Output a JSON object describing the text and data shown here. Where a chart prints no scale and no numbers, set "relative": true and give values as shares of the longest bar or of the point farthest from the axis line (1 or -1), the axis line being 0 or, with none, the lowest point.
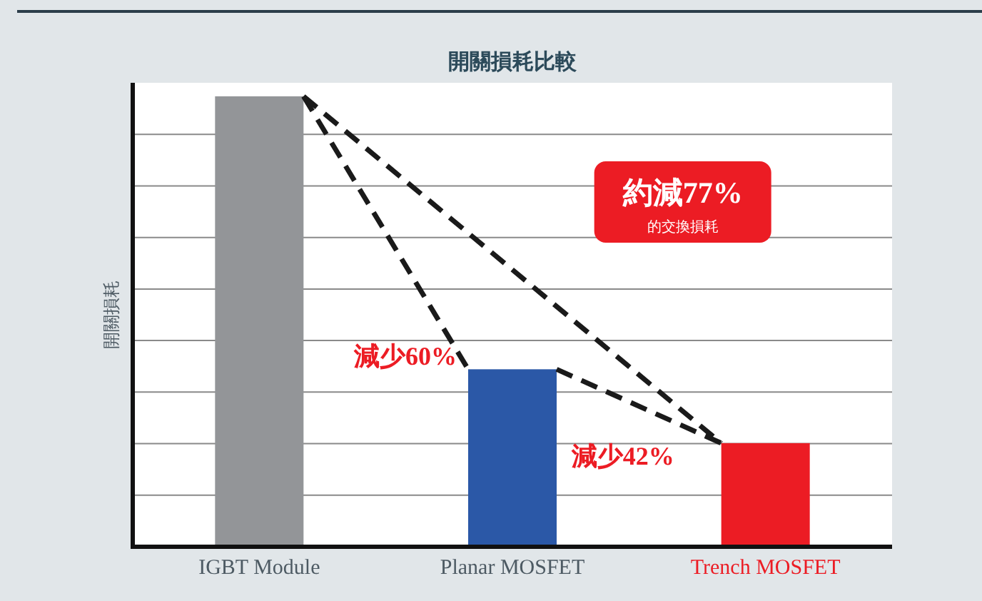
{
  "chart_data": {
    "type": "bar",
    "title": "開關損耗比較",
    "ylabel": "開關損耗",
    "categories": [
      "IGBT Module",
      "Planar MOSFET",
      "Trench MOSFET"
    ],
    "values": [
      1,
      0.394,
      0.23
    ],
    "colors": [
      "#939598",
      "#2b58a7",
      "#ec1c24"
    ],
    "relative": true,
    "grid": "y",
    "annotations": [
      "減少60%",
      "減少42%",
      "約減77%",
      "的交換損耗"
    ]
  }
}
